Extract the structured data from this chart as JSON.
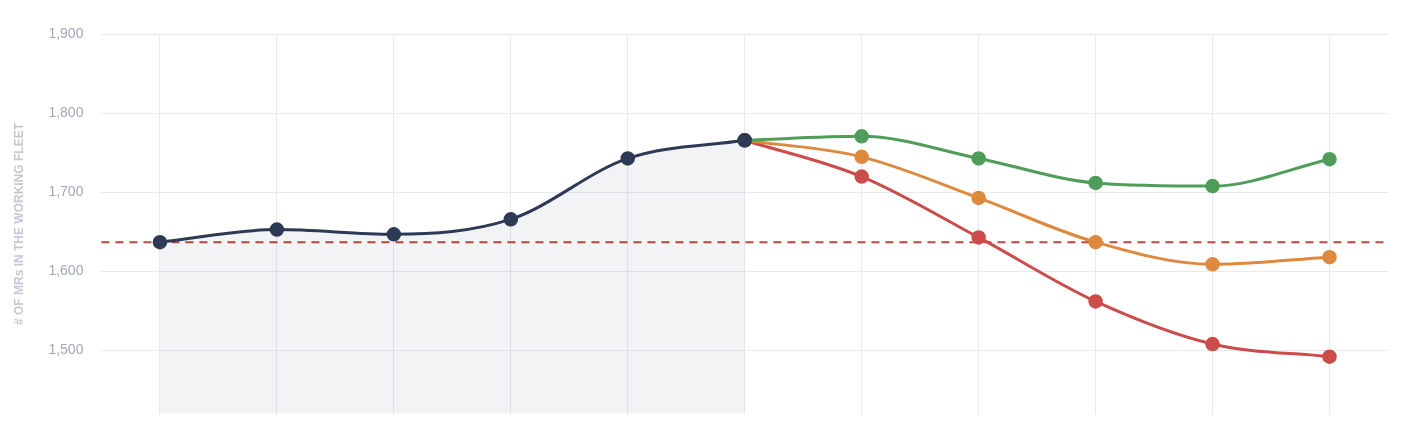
{
  "chart_data": {
    "type": "line",
    "ylabel": "# OF MRs IN THE WORKING FLEET",
    "categories": [
      null,
      null,
      null,
      null,
      null,
      null,
      null,
      null,
      null,
      null,
      null
    ],
    "series": [
      {
        "type": "area",
        "color": "#2e3a55",
        "values": [
          1637,
          1653,
          1647,
          1666,
          1743,
          1766,
          null,
          null,
          null,
          null,
          null
        ]
      },
      {
        "color": "#4f9d5b",
        "values": [
          null,
          null,
          null,
          null,
          null,
          1766,
          1771,
          1743,
          1712,
          1708,
          1742
        ]
      },
      {
        "color": "#dd8a3f",
        "values": [
          null,
          null,
          null,
          null,
          null,
          1766,
          1745,
          1693,
          1637,
          1609,
          1618
        ]
      },
      {
        "color": "#cc4b4b",
        "values": [
          null,
          null,
          null,
          null,
          null,
          1766,
          1720,
          1643,
          1562,
          1508,
          1492
        ]
      }
    ],
    "ylim": [
      1420,
      1900
    ],
    "yticks": [
      {
        "value": 1500,
        "label": "1,500"
      },
      {
        "value": 1600,
        "label": "1,600"
      },
      {
        "value": 1700,
        "label": "1,700"
      },
      {
        "value": 1800,
        "label": "1,800"
      },
      {
        "value": 1900,
        "label": "1,900"
      }
    ],
    "ref_lines": [
      {
        "axis": "y",
        "value": 1637,
        "color": "#c0463f",
        "line_style": "dashed"
      }
    ],
    "grid": true,
    "marker": "circle",
    "line_style": "solid",
    "tick_labels": "y"
  }
}
